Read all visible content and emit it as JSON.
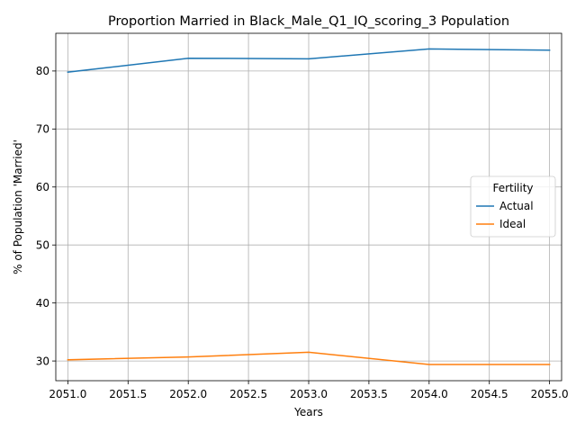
{
  "chart_data": {
    "type": "line",
    "title": "Proportion Married in Black_Male_Q1_IQ_scoring_3 Population",
    "xlabel": "Years",
    "ylabel": "% of Population 'Married'",
    "x": [
      2051,
      2052,
      2053,
      2054,
      2055
    ],
    "xlim": [
      2050.9,
      2055.1
    ],
    "ylim": [
      26.6,
      86.5
    ],
    "x_ticks": [
      2051.0,
      2051.5,
      2052.0,
      2052.5,
      2053.0,
      2053.5,
      2054.0,
      2054.5,
      2055.0
    ],
    "x_tick_labels": [
      "2051.0",
      "2051.5",
      "2052.0",
      "2052.5",
      "2053.0",
      "2053.5",
      "2054.0",
      "2054.5",
      "2055.0"
    ],
    "y_ticks": [
      30,
      40,
      50,
      60,
      70,
      80
    ],
    "y_tick_labels": [
      "30",
      "40",
      "50",
      "60",
      "70",
      "80"
    ],
    "grid": true,
    "legend": {
      "title": "Fertility",
      "placement": "center-right"
    },
    "series": [
      {
        "name": "Actual",
        "color": "#1f77b4",
        "values": [
          79.8,
          82.2,
          82.1,
          83.8,
          83.6
        ]
      },
      {
        "name": "Ideal",
        "color": "#ff7f0e",
        "values": [
          30.2,
          30.7,
          31.5,
          29.4,
          29.4
        ]
      }
    ]
  }
}
